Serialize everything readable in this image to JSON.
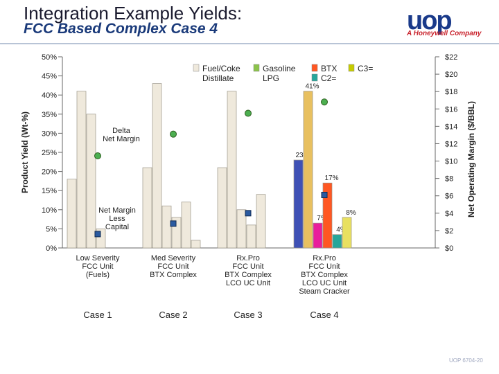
{
  "header": {
    "title_line1": "Integration Example Yields:",
    "title_line2": "FCC Based Complex Case 4",
    "logo_text": "uop",
    "logo_tagline": "A Honeywell Company",
    "brand_color": "#1a3a8a"
  },
  "footer": {
    "code": "UOP 6704-20"
  },
  "chart_data": {
    "type": "bar",
    "ylabel": "Product Yield (Wt-%)",
    "y2label": "Net Operating Margin ($/BBL)",
    "ylim": [
      0,
      50
    ],
    "y2lim": [
      0,
      22
    ],
    "yticks": [
      "0%",
      "5%",
      "10%",
      "15%",
      "20%",
      "25%",
      "30%",
      "35%",
      "40%",
      "45%",
      "50%"
    ],
    "y2ticks": [
      "$0",
      "$2",
      "$4",
      "$6",
      "$8",
      "$10",
      "$12",
      "$14",
      "$16",
      "$18",
      "$20",
      "$22"
    ],
    "legend": [
      {
        "label": "Fuel/Coke Distillate",
        "label_lines": [
          "Fuel/Coke",
          "Distillate"
        ],
        "color": "#efe9dc"
      },
      {
        "label": "Gasoline LPG",
        "label_lines": [
          "Gasoline",
          "LPG"
        ],
        "color": "#8bc34a"
      },
      {
        "label": "BTX C2=",
        "label_lines": [
          "BTX",
          "C2="
        ],
        "color": "#ff5722"
      },
      {
        "label": "C3=",
        "label_lines": [
          "C3="
        ],
        "color": "#c6cc00"
      }
    ],
    "categories": [
      {
        "label": "Low Severity FCC Unit (Fuels)",
        "label_lines": [
          "Low Severity",
          "FCC Unit",
          "(Fuels)"
        ],
        "case": "Case 1",
        "bars": [
          {
            "value": 18,
            "color": "#efe9dc"
          },
          {
            "value": 41,
            "color": "#efe9dc"
          },
          {
            "value": 35,
            "color": "#efe9dc"
          },
          {
            "value": 5,
            "color": "#efe9dc"
          }
        ],
        "delta_margin": 10.6,
        "net_margin_less_capital": 1.6
      },
      {
        "label": "Med Severity FCC Unit BTX Complex",
        "label_lines": [
          "Med Severity",
          "FCC Unit",
          "BTX Complex"
        ],
        "case": "Case 2",
        "bars": [
          {
            "value": 21,
            "color": "#efe9dc"
          },
          {
            "value": 43,
            "color": "#efe9dc"
          },
          {
            "value": 11,
            "color": "#efe9dc"
          },
          {
            "value": 8,
            "color": "#efe9dc"
          },
          {
            "value": 12,
            "color": "#efe9dc"
          },
          {
            "value": 2,
            "color": "#efe9dc"
          }
        ],
        "delta_margin": 13.1,
        "net_margin_less_capital": 2.8
      },
      {
        "label": "Rx.Pro FCC Unit BTX Complex LCO UC Unit",
        "label_lines": [
          "Rx.Pro",
          "FCC Unit",
          "BTX Complex",
          "LCO UC Unit"
        ],
        "case": "Case 3",
        "bars": [
          {
            "value": 21,
            "color": "#efe9dc"
          },
          {
            "value": 41,
            "color": "#efe9dc"
          },
          {
            "value": 10,
            "color": "#efe9dc"
          },
          {
            "value": 6,
            "color": "#efe9dc"
          },
          {
            "value": 14,
            "color": "#efe9dc"
          }
        ],
        "delta_margin": 15.5,
        "net_margin_less_capital": 4.0
      },
      {
        "label": "Rx.Pro FCC Unit BTX Complex LCO UC Unit Steam Cracker",
        "label_lines": [
          "Rx.Pro",
          "FCC Unit",
          "BTX Complex",
          "LCO UC Unit",
          "Steam Cracker"
        ],
        "case": "Case 4",
        "bars": [
          {
            "value": 23,
            "color": "#3f51b5",
            "label": "23%"
          },
          {
            "value": 41,
            "color": "#e8c060",
            "label": "41%"
          },
          {
            "value": 6.5,
            "color": "#e91e9c",
            "label": "7%"
          },
          {
            "value": 17,
            "color": "#ff5722",
            "label": "17%"
          },
          {
            "value": 3.5,
            "color": "#26a69a",
            "label": "4%"
          },
          {
            "value": 8,
            "color": "#e8e060",
            "label": "8%"
          }
        ],
        "delta_margin": 16.8,
        "net_margin_less_capital": 6.1
      }
    ],
    "annotations": [
      {
        "text": "Delta Net Margin",
        "lines": [
          "Delta",
          "Net Margin"
        ]
      },
      {
        "text": "Net Margin Less Capital",
        "lines": [
          "Net Margin",
          "Less",
          "Capital"
        ]
      }
    ],
    "grid": false,
    "legend_position": "top-center"
  }
}
